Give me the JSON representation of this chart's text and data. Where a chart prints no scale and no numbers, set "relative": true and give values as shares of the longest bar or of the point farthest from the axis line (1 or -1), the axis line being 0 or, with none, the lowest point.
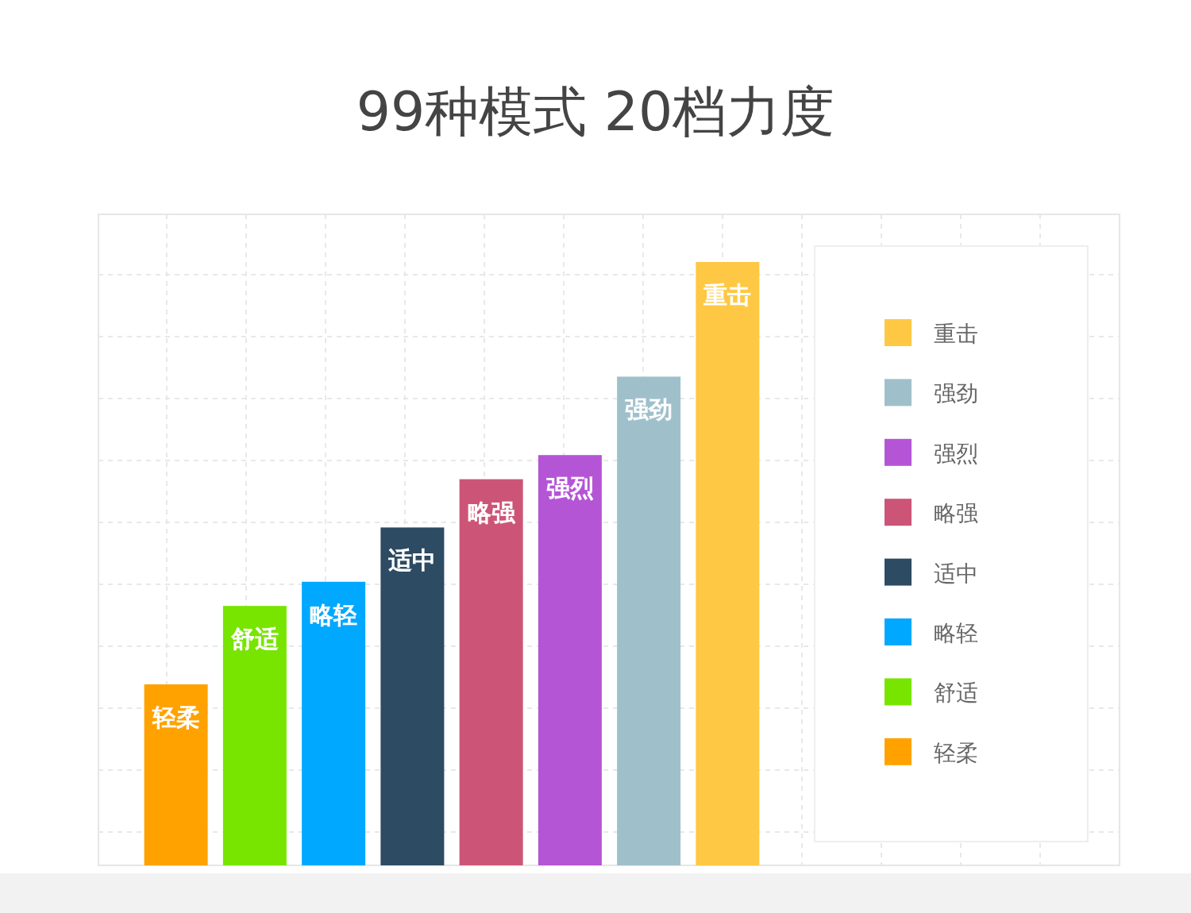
{
  "chart_data": {
    "type": "bar",
    "title": "99种模式 20档力度",
    "relative": true,
    "grid": true,
    "legend": "right",
    "stacked": true,
    "categories": [
      null,
      null,
      null,
      null,
      null,
      null,
      null,
      null
    ],
    "series": [
      {
        "name": "轻柔",
        "color": "#ffa200",
        "values": [
          0.3,
          null,
          null,
          null,
          null,
          null,
          null,
          null
        ]
      },
      {
        "name": "舒适",
        "color": "#77e500",
        "values": [
          null,
          0.43,
          null,
          null,
          null,
          null,
          null,
          null
        ]
      },
      {
        "name": "略轻",
        "color": "#00a8ff",
        "values": [
          null,
          null,
          0.47,
          null,
          null,
          null,
          null,
          null
        ]
      },
      {
        "name": "适中",
        "color": "#2d4b62",
        "values": [
          null,
          null,
          null,
          0.56,
          null,
          null,
          null,
          null
        ]
      },
      {
        "name": "略强",
        "color": "#cc5577",
        "values": [
          null,
          null,
          null,
          null,
          0.64,
          null,
          null,
          null
        ]
      },
      {
        "name": "强烈",
        "color": "#b455d6",
        "values": [
          null,
          null,
          null,
          null,
          null,
          0.68,
          null,
          null
        ]
      },
      {
        "name": "强劲",
        "color": "#9fc0cb",
        "values": [
          null,
          null,
          null,
          null,
          null,
          null,
          0.81,
          null
        ]
      },
      {
        "name": "重击",
        "color": "#fec845",
        "values": [
          null,
          null,
          null,
          null,
          null,
          null,
          null,
          1
        ]
      }
    ]
  }
}
